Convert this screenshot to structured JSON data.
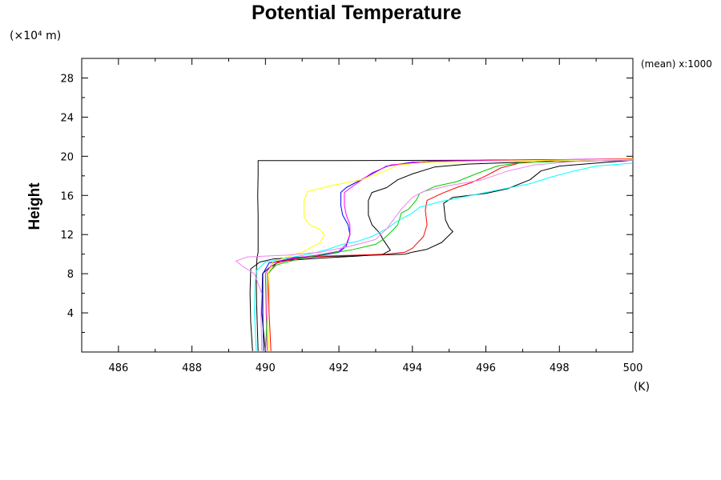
{
  "chart_data": {
    "type": "line",
    "title": "Potential Temperature",
    "ylabel": "Height",
    "y_unit_label": "(×10⁴ m)",
    "x_unit_label": "(K)",
    "note": "(mean) x:1000",
    "xlim": [
      485,
      500
    ],
    "ylim": [
      0,
      30
    ],
    "x_ticks": [
      486,
      488,
      490,
      492,
      494,
      496,
      498,
      500
    ],
    "y_ticks": [
      4,
      8,
      12,
      16,
      20,
      24,
      28
    ],
    "grid": false,
    "series": [
      {
        "color": "#000000",
        "points": [
          [
            489.65,
            0.1
          ],
          [
            489.6,
            3
          ],
          [
            489.58,
            6
          ],
          [
            489.6,
            8.5
          ],
          [
            489.85,
            9.2
          ],
          [
            490.2,
            9.5
          ],
          [
            491,
            9.7
          ],
          [
            492,
            9.8
          ],
          [
            493,
            9.9
          ],
          [
            493.8,
            10
          ],
          [
            494,
            10.2
          ],
          [
            494.4,
            10.5
          ],
          [
            494.8,
            11.2
          ],
          [
            495.1,
            12.3
          ],
          [
            495.0,
            12.7
          ],
          [
            494.9,
            13.5
          ],
          [
            494.85,
            15.2
          ],
          [
            495.1,
            15.8
          ],
          [
            496,
            16.2
          ],
          [
            496.6,
            16.7
          ],
          [
            497.2,
            17.6
          ],
          [
            497.5,
            18.5
          ],
          [
            498,
            19.0
          ],
          [
            499,
            19.3
          ],
          [
            500,
            19.6
          ]
        ]
      },
      {
        "color": "#000000",
        "points": [
          [
            490,
            0.1
          ],
          [
            489.9,
            4
          ],
          [
            489.92,
            8
          ],
          [
            490.1,
            8.6
          ],
          [
            490.4,
            9.3
          ],
          [
            491.5,
            9.6
          ],
          [
            492.5,
            9.8
          ],
          [
            493.2,
            10
          ],
          [
            493.4,
            10.4
          ],
          [
            493.2,
            11.5
          ],
          [
            493.1,
            12.2
          ],
          [
            492.9,
            13
          ],
          [
            492.8,
            14
          ],
          [
            492.8,
            15.5
          ],
          [
            492.9,
            16.3
          ],
          [
            493.3,
            16.8
          ],
          [
            493.6,
            17.6
          ],
          [
            494,
            18.2
          ],
          [
            494.6,
            18.9
          ],
          [
            495.5,
            19.2
          ],
          [
            497,
            19.4
          ],
          [
            500,
            19.6
          ]
        ]
      },
      {
        "color": "#000000",
        "points": [
          [
            489.8,
            0.1
          ],
          [
            489.76,
            5
          ],
          [
            489.75,
            8
          ],
          [
            489.77,
            9.6
          ],
          [
            489.8,
            10.2
          ],
          [
            489.8,
            12
          ],
          [
            489.8,
            14
          ],
          [
            489.79,
            16
          ],
          [
            489.8,
            18
          ],
          [
            489.8,
            19.2
          ],
          [
            489.8,
            19.55
          ],
          [
            492,
            19.55
          ],
          [
            496,
            19.6
          ],
          [
            500,
            19.7
          ]
        ]
      },
      {
        "color": "#0000ff",
        "points": [
          [
            489.95,
            0.1
          ],
          [
            489.93,
            4
          ],
          [
            489.93,
            8
          ],
          [
            490.1,
            9.1
          ],
          [
            490.5,
            9.4
          ],
          [
            491.4,
            9.8
          ],
          [
            492,
            10.2
          ],
          [
            492.2,
            10.8
          ],
          [
            492.3,
            12
          ],
          [
            492.25,
            13
          ],
          [
            492.1,
            14
          ],
          [
            492.05,
            15
          ],
          [
            492.05,
            16.3
          ],
          [
            492.2,
            16.8
          ],
          [
            492.8,
            18
          ],
          [
            493.3,
            19
          ],
          [
            494,
            19.4
          ],
          [
            496,
            19.6
          ],
          [
            500,
            19.7
          ]
        ]
      },
      {
        "color": "#ff00ff",
        "points": [
          [
            490.05,
            0.1
          ],
          [
            490.02,
            4
          ],
          [
            490.0,
            8
          ],
          [
            490.2,
            9.1
          ],
          [
            490.6,
            9.5
          ],
          [
            491.4,
            9.9
          ],
          [
            492,
            10.3
          ],
          [
            492.2,
            11
          ],
          [
            492.3,
            12
          ],
          [
            492.3,
            13
          ],
          [
            492.2,
            14
          ],
          [
            492.15,
            15
          ],
          [
            492.15,
            16.3
          ],
          [
            492.4,
            17
          ],
          [
            492.9,
            18.3
          ],
          [
            493.4,
            19.1
          ],
          [
            494.5,
            19.5
          ],
          [
            500,
            19.75
          ]
        ]
      },
      {
        "color": "#ff0000",
        "points": [
          [
            490.15,
            0.1
          ],
          [
            490.1,
            4
          ],
          [
            490.08,
            8
          ],
          [
            490.3,
            9.1
          ],
          [
            490.8,
            9.5
          ],
          [
            491.6,
            9.8
          ],
          [
            492.5,
            9.9
          ],
          [
            493.3,
            10
          ],
          [
            493.8,
            10.2
          ],
          [
            494.0,
            10.6
          ],
          [
            494.3,
            11.8
          ],
          [
            494.4,
            13
          ],
          [
            494.35,
            14.5
          ],
          [
            494.4,
            15.5
          ],
          [
            494.8,
            16.2
          ],
          [
            495.2,
            16.8
          ],
          [
            495.6,
            17.3
          ],
          [
            496,
            18
          ],
          [
            496.4,
            18.8
          ],
          [
            496.9,
            19.3
          ],
          [
            498,
            19.6
          ],
          [
            500,
            19.75
          ]
        ]
      },
      {
        "color": "#00cc00",
        "points": [
          [
            490.0,
            0.1
          ],
          [
            490.05,
            4
          ],
          [
            490.05,
            8
          ],
          [
            490.3,
            8.9
          ],
          [
            490.9,
            9.5
          ],
          [
            491.6,
            10
          ],
          [
            492.3,
            10.4
          ],
          [
            493,
            11
          ],
          [
            493.2,
            11.5
          ],
          [
            493.4,
            12.2
          ],
          [
            493.6,
            13
          ],
          [
            493.7,
            14.2
          ],
          [
            493.9,
            14.6
          ],
          [
            494.1,
            15.5
          ],
          [
            494.2,
            16.2
          ],
          [
            494.6,
            16.9
          ],
          [
            495.2,
            17.4
          ],
          [
            495.8,
            18.3
          ],
          [
            496.3,
            19
          ],
          [
            497,
            19.4
          ],
          [
            500,
            19.6
          ]
        ]
      },
      {
        "color": "#00ffff",
        "points": [
          [
            489.75,
            0.1
          ],
          [
            489.7,
            4
          ],
          [
            489.72,
            7
          ],
          [
            489.75,
            8.3
          ],
          [
            490,
            9.2
          ],
          [
            490.6,
            9.6
          ],
          [
            491.2,
            10
          ],
          [
            491.7,
            10.5
          ],
          [
            492.1,
            11
          ],
          [
            492.5,
            11.3
          ],
          [
            492.9,
            11.8
          ],
          [
            493.3,
            12.6
          ],
          [
            493.6,
            13.4
          ],
          [
            494.0,
            14.2
          ],
          [
            494.2,
            14.8
          ],
          [
            494.8,
            15.4
          ],
          [
            495.6,
            16
          ],
          [
            496.4,
            16.6
          ],
          [
            497.2,
            17.2
          ],
          [
            497.8,
            17.9
          ],
          [
            498.4,
            18.5
          ],
          [
            499,
            19
          ],
          [
            500,
            19.3
          ]
        ]
      },
      {
        "color": "#ffff00",
        "points": [
          [
            490.1,
            0.1
          ],
          [
            490.05,
            4
          ],
          [
            490.08,
            8
          ],
          [
            490.2,
            9.2
          ],
          [
            490.5,
            9.6
          ],
          [
            491,
            10.2
          ],
          [
            491.5,
            11.2
          ],
          [
            491.6,
            12
          ],
          [
            491.5,
            12.5
          ],
          [
            491.2,
            13
          ],
          [
            491.05,
            13.8
          ],
          [
            491.05,
            15.5
          ],
          [
            491.15,
            16.4
          ],
          [
            491.8,
            17
          ],
          [
            492.6,
            17.6
          ],
          [
            493.2,
            18.4
          ],
          [
            493.6,
            19.1
          ],
          [
            494.5,
            19.4
          ],
          [
            496,
            19.5
          ],
          [
            500,
            19.7
          ]
        ]
      },
      {
        "color": "#ee82ee",
        "points": [
          [
            489.9,
            0.1
          ],
          [
            489.88,
            4
          ],
          [
            489.9,
            6
          ],
          [
            489.7,
            8
          ],
          [
            489.4,
            8.7
          ],
          [
            489.2,
            9.3
          ],
          [
            489.5,
            9.7
          ],
          [
            490,
            9.8
          ],
          [
            490.6,
            9.9
          ],
          [
            491.5,
            10.2
          ],
          [
            492.3,
            10.8
          ],
          [
            493,
            11.5
          ],
          [
            493.3,
            12.6
          ],
          [
            493.5,
            13.6
          ],
          [
            493.7,
            14.6
          ],
          [
            494,
            15.8
          ],
          [
            494.3,
            16.4
          ],
          [
            495,
            17
          ],
          [
            495.9,
            17.6
          ],
          [
            496.6,
            18.5
          ],
          [
            497.3,
            19.1
          ],
          [
            498.5,
            19.5
          ],
          [
            500,
            19.6
          ]
        ]
      }
    ]
  }
}
